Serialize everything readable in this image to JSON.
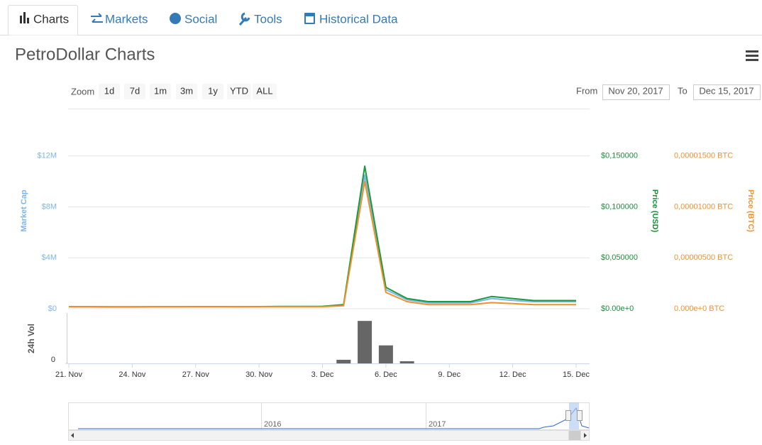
{
  "tabs": [
    "Charts",
    "Markets",
    "Social",
    "Tools",
    "Historical Data"
  ],
  "title": "PetroDollar Charts",
  "zoom": {
    "label": "Zoom",
    "buttons": [
      "1d",
      "7d",
      "1m",
      "3m",
      "1y",
      "YTD",
      "ALL"
    ]
  },
  "range": {
    "from_label": "From",
    "from": "Nov 20, 2017",
    "to_label": "To",
    "to": "Dec 15, 2017"
  },
  "navigator": {
    "labels": [
      "2016",
      "2017"
    ]
  },
  "chart_data": {
    "type": "line",
    "y_label": "Market Cap",
    "y2_label": "Price (USD)",
    "y3_label": "Price (BTC)",
    "x": [
      "21. Nov",
      null,
      null,
      "24. Nov",
      null,
      null,
      "27. Nov",
      null,
      null,
      "30. Nov",
      null,
      null,
      "3. Dec",
      null,
      null,
      "6. Dec",
      null,
      null,
      "9. Dec",
      null,
      null,
      "12. Dec",
      null,
      null,
      "15. Dec"
    ],
    "ylim": [
      0,
      16000000
    ],
    "yticks": [
      {
        "value": 0,
        "label": "$0"
      },
      {
        "value": 4000000,
        "label": "$4M"
      },
      {
        "value": 8000000,
        "label": "$8M"
      },
      {
        "value": 12000000,
        "label": "$12M"
      }
    ],
    "y2lim": [
      0,
      0.2
    ],
    "y2ticks": [
      {
        "value": 0,
        "label": "$0.00e+0"
      },
      {
        "value": 0.05,
        "label": "$0,050000"
      },
      {
        "value": 0.1,
        "label": "$0,100000"
      },
      {
        "value": 0.15,
        "label": "$0,150000"
      }
    ],
    "y3lim": [
      0,
      2e-05
    ],
    "y3ticks": [
      {
        "value": 0,
        "label": "0.000e+0 BTC"
      },
      {
        "value": 5e-06,
        "label": "0,00000500 BTC"
      },
      {
        "value": 1e-05,
        "label": "0,00001000 BTC"
      },
      {
        "value": 1.5e-05,
        "label": "0,00001500 BTC"
      }
    ],
    "grid": true,
    "series": [
      {
        "name": "Market Cap",
        "color": "#7cb5ec",
        "axis": "y",
        "values": [
          150000,
          150000,
          140000,
          140000,
          150000,
          150000,
          160000,
          160000,
          150000,
          160000,
          170000,
          170000,
          180000,
          300000,
          10500000,
          1500000,
          700000,
          450000,
          450000,
          450000,
          800000,
          650000,
          550000,
          550000,
          550000
        ]
      },
      {
        "name": "Price (USD)",
        "color": "#1a9a3c",
        "axis": "y2",
        "values": [
          0.002,
          0.002,
          0.0018,
          0.0018,
          0.002,
          0.002,
          0.0021,
          0.0021,
          0.002,
          0.0021,
          0.0022,
          0.0022,
          0.0024,
          0.004,
          0.14,
          0.021,
          0.01,
          0.007,
          0.007,
          0.007,
          0.012,
          0.01,
          0.008,
          0.008,
          0.008
        ]
      },
      {
        "name": "Price (BTC)",
        "color": "#f0912c",
        "axis": "y3",
        "values": [
          2e-07,
          2e-07,
          2e-07,
          2e-07,
          2e-07,
          2e-07,
          2e-07,
          2e-07,
          2e-07,
          2e-07,
          2e-07,
          2e-07,
          2e-07,
          3e-07,
          1.25e-05,
          1.6e-06,
          7e-07,
          4e-07,
          4e-07,
          4e-07,
          6e-07,
          5e-07,
          4e-07,
          4e-07,
          4e-07
        ]
      }
    ],
    "volume": {
      "name": "24h Vol",
      "color": "#666666",
      "ylim": [
        0,
        70
      ],
      "yticks": [
        0
      ],
      "values": [
        0,
        0,
        0,
        0,
        0,
        0,
        0,
        0,
        0,
        0,
        0,
        0,
        0,
        5,
        59,
        25,
        3,
        0,
        0,
        0,
        0,
        0,
        0,
        0,
        0
      ]
    }
  }
}
